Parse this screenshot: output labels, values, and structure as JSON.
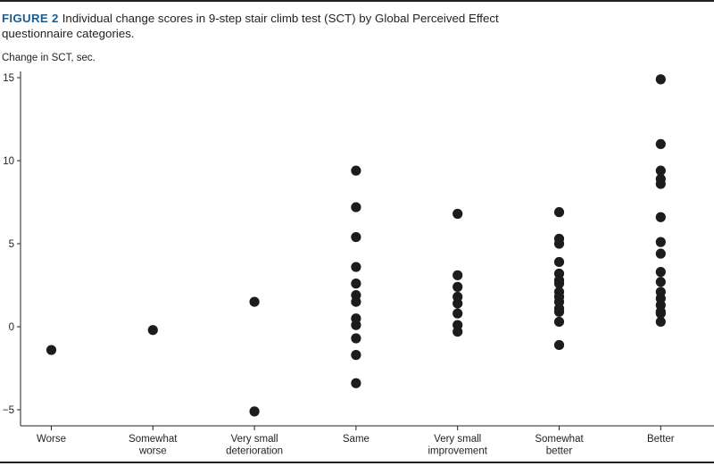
{
  "caption": {
    "label": "FIGURE 2",
    "text": "Individual change scores in 9-step stair climb test (SCT) by Global Perceived Effect questionnaire categories."
  },
  "colors": {
    "dots": "#1e1b1c",
    "axis": "#231f20",
    "figure_label": "#1f5c8c"
  },
  "chart_data": {
    "type": "scatter",
    "title": "Individual change scores in 9-step stair climb test (SCT) by Global Perceived Effect questionnaire categories.",
    "ylabel": "Change in SCT, sec.",
    "xlabel": "",
    "ylim": [
      -5.5,
      15.5
    ],
    "yticks": [
      15,
      10,
      5,
      0,
      -5
    ],
    "grid": false,
    "legend": "none",
    "categories": [
      [
        "Worse"
      ],
      [
        "Somewhat",
        "worse"
      ],
      [
        "Very small",
        "deterioration"
      ],
      [
        "Same"
      ],
      [
        "Very small",
        "improvement"
      ],
      [
        "Somewhat",
        "better"
      ],
      [
        "Better"
      ]
    ],
    "series": [
      {
        "values": [
          [
            -1.4
          ]
        ]
      },
      {
        "values": [
          [],
          [
            -0.2
          ]
        ]
      },
      {
        "values": [
          [],
          [],
          [
            1.5,
            -5.1
          ]
        ]
      },
      {
        "values": [
          [],
          [],
          [],
          [
            9.4,
            7.2,
            5.4,
            3.6,
            2.6,
            1.9,
            1.5,
            0.5,
            0.1,
            -0.7,
            -1.7,
            -3.4
          ]
        ]
      },
      {
        "values": [
          [],
          [],
          [],
          [],
          [
            6.8,
            3.1,
            2.4,
            1.8,
            1.4,
            0.8,
            0.1,
            -0.3
          ]
        ]
      },
      {
        "values": [
          [],
          [],
          [],
          [],
          [],
          [
            6.9,
            5.3,
            5.0,
            3.9,
            3.2,
            2.8,
            2.6,
            2.1,
            1.8,
            1.5,
            1.1,
            0.9,
            0.3,
            -1.1
          ]
        ]
      },
      {
        "values": [
          [],
          [],
          [],
          [],
          [],
          [],
          [
            14.9,
            11.0,
            9.4,
            8.9,
            8.6,
            6.6,
            5.1,
            4.4,
            3.3,
            2.7,
            2.1,
            1.7,
            1.3,
            0.9,
            0.8,
            0.3
          ]
        ]
      }
    ]
  }
}
